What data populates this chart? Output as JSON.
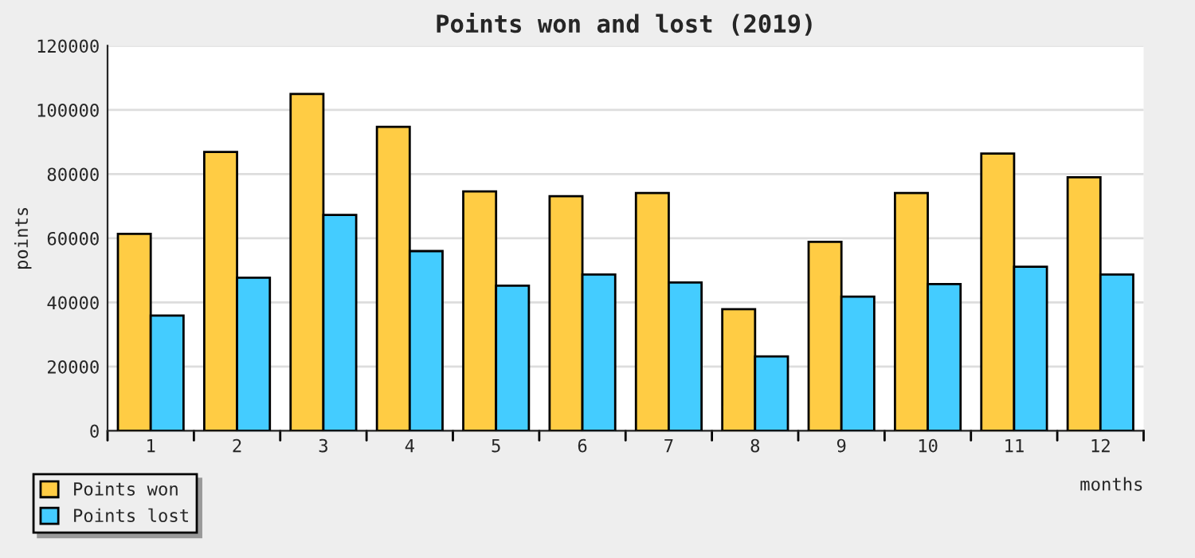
{
  "chart_data": {
    "type": "bar",
    "title": "Points won and lost (2019)",
    "xlabel": "months",
    "ylabel": "points",
    "categories": [
      "1",
      "2",
      "3",
      "4",
      "5",
      "6",
      "7",
      "8",
      "9",
      "10",
      "11",
      "12"
    ],
    "series": [
      {
        "name": "Points won",
        "color": "#ffcc44",
        "values": [
          61400,
          86900,
          105000,
          94700,
          74600,
          73100,
          74100,
          37900,
          58900,
          74100,
          86400,
          79000
        ]
      },
      {
        "name": "Points lost",
        "color": "#44ccff",
        "values": [
          35900,
          47700,
          67300,
          56000,
          45200,
          48700,
          46200,
          23200,
          41800,
          45700,
          51100,
          48700
        ]
      }
    ],
    "ylim": [
      0,
      120000
    ],
    "yticks": [
      0,
      20000,
      40000,
      60000,
      80000,
      100000,
      120000
    ],
    "grid": "y",
    "legend": "bottom left"
  }
}
